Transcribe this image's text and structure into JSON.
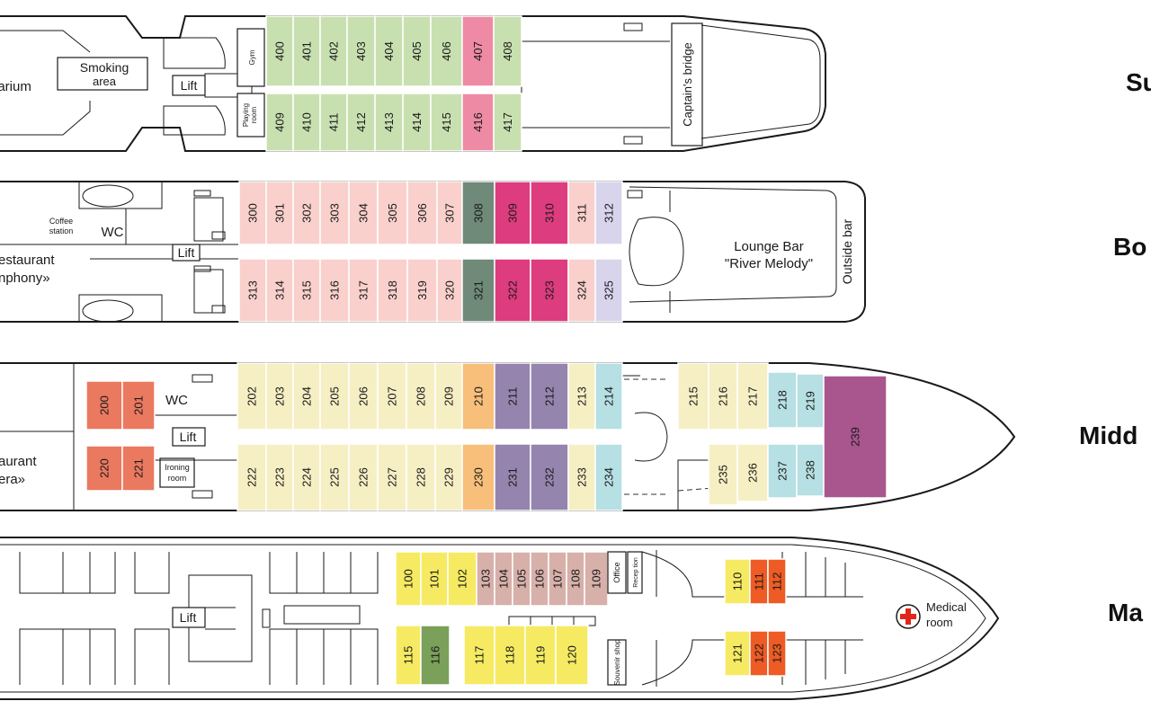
{
  "colors": {
    "green": "#c8e0b0",
    "pink": "#ef8aa4",
    "lightpink": "#f9d0cc",
    "darkgreen": "#6f8a78",
    "magenta": "#dd3c7e",
    "lavender": "#d7d4ec",
    "cream": "#f6efc4",
    "orange": "#f7bf7a",
    "purple": "#9584ae",
    "teal": "#b6e0e3",
    "plum": "#a9568f",
    "red": "#ea7960",
    "yellow": "#f6ea63",
    "mauve": "#d7b0aa",
    "olive": "#7aa05a",
    "redorange": "#ee5b24"
  },
  "decks": [
    {
      "key": "sun",
      "name": "Su"
    },
    {
      "key": "boat",
      "name": "Bo"
    },
    {
      "key": "middle",
      "name": "Midd"
    },
    {
      "key": "main",
      "name": "Ma"
    }
  ],
  "labels": {
    "solarium": "larium",
    "smoking_1": "Smoking",
    "smoking_2": "area",
    "lift": "Lift",
    "gym": "Gym",
    "playing_1": "Playing",
    "playing_2": "room",
    "captains_bridge": "Captain's bridge",
    "coffee_1": "Coffee",
    "coffee_2": "station",
    "wc": "WC",
    "restaurant_sym_1": "estaurant",
    "restaurant_sym_2": "nphony»",
    "lounge_1": "Lounge Bar",
    "lounge_2": "\"River Melody\"",
    "outside_bar": "Outside bar",
    "ironing_1": "Ironing",
    "ironing_2": "room",
    "restaurant_op_1": "aurant",
    "restaurant_op_2": "era»",
    "office": "Office",
    "reception": "Recep tion",
    "souvenir": "Souvenir shop",
    "medical_1": "Medical",
    "medical_2": "room"
  },
  "cabins": {
    "sun": [
      {
        "n": "400",
        "c": "green"
      },
      {
        "n": "401",
        "c": "green"
      },
      {
        "n": "402",
        "c": "green"
      },
      {
        "n": "403",
        "c": "green"
      },
      {
        "n": "404",
        "c": "green"
      },
      {
        "n": "405",
        "c": "green"
      },
      {
        "n": "406",
        "c": "green"
      },
      {
        "n": "407",
        "c": "pink"
      },
      {
        "n": "408",
        "c": "green"
      },
      {
        "n": "409",
        "c": "green"
      },
      {
        "n": "410",
        "c": "green"
      },
      {
        "n": "411",
        "c": "green"
      },
      {
        "n": "412",
        "c": "green"
      },
      {
        "n": "413",
        "c": "green"
      },
      {
        "n": "414",
        "c": "green"
      },
      {
        "n": "415",
        "c": "green"
      },
      {
        "n": "416",
        "c": "pink"
      },
      {
        "n": "417",
        "c": "green"
      }
    ],
    "boat": [
      {
        "n": "300",
        "c": "lightpink"
      },
      {
        "n": "301",
        "c": "lightpink"
      },
      {
        "n": "302",
        "c": "lightpink"
      },
      {
        "n": "303",
        "c": "lightpink"
      },
      {
        "n": "304",
        "c": "lightpink"
      },
      {
        "n": "305",
        "c": "lightpink"
      },
      {
        "n": "306",
        "c": "lightpink"
      },
      {
        "n": "307",
        "c": "lightpink"
      },
      {
        "n": "308",
        "c": "darkgreen"
      },
      {
        "n": "309",
        "c": "magenta"
      },
      {
        "n": "310",
        "c": "magenta"
      },
      {
        "n": "311",
        "c": "lightpink"
      },
      {
        "n": "312",
        "c": "lavender"
      },
      {
        "n": "313",
        "c": "lightpink"
      },
      {
        "n": "314",
        "c": "lightpink"
      },
      {
        "n": "315",
        "c": "lightpink"
      },
      {
        "n": "316",
        "c": "lightpink"
      },
      {
        "n": "317",
        "c": "lightpink"
      },
      {
        "n": "318",
        "c": "lightpink"
      },
      {
        "n": "319",
        "c": "lightpink"
      },
      {
        "n": "320",
        "c": "lightpink"
      },
      {
        "n": "321",
        "c": "darkgreen"
      },
      {
        "n": "322",
        "c": "magenta"
      },
      {
        "n": "323",
        "c": "magenta"
      },
      {
        "n": "324",
        "c": "lightpink"
      },
      {
        "n": "325",
        "c": "lavender"
      }
    ],
    "middle": [
      {
        "n": "200",
        "c": "red"
      },
      {
        "n": "201",
        "c": "red"
      },
      {
        "n": "202",
        "c": "cream"
      },
      {
        "n": "203",
        "c": "cream"
      },
      {
        "n": "204",
        "c": "cream"
      },
      {
        "n": "205",
        "c": "cream"
      },
      {
        "n": "206",
        "c": "cream"
      },
      {
        "n": "207",
        "c": "cream"
      },
      {
        "n": "208",
        "c": "cream"
      },
      {
        "n": "209",
        "c": "cream"
      },
      {
        "n": "210",
        "c": "orange"
      },
      {
        "n": "211",
        "c": "purple"
      },
      {
        "n": "212",
        "c": "purple"
      },
      {
        "n": "213",
        "c": "cream"
      },
      {
        "n": "214",
        "c": "teal"
      },
      {
        "n": "215",
        "c": "cream"
      },
      {
        "n": "216",
        "c": "cream"
      },
      {
        "n": "217",
        "c": "cream"
      },
      {
        "n": "218",
        "c": "teal"
      },
      {
        "n": "219",
        "c": "teal"
      },
      {
        "n": "220",
        "c": "red"
      },
      {
        "n": "221",
        "c": "red"
      },
      {
        "n": "222",
        "c": "cream"
      },
      {
        "n": "223",
        "c": "cream"
      },
      {
        "n": "224",
        "c": "cream"
      },
      {
        "n": "225",
        "c": "cream"
      },
      {
        "n": "226",
        "c": "cream"
      },
      {
        "n": "227",
        "c": "cream"
      },
      {
        "n": "228",
        "c": "cream"
      },
      {
        "n": "229",
        "c": "cream"
      },
      {
        "n": "230",
        "c": "orange"
      },
      {
        "n": "231",
        "c": "purple"
      },
      {
        "n": "232",
        "c": "purple"
      },
      {
        "n": "233",
        "c": "cream"
      },
      {
        "n": "234",
        "c": "teal"
      },
      {
        "n": "235",
        "c": "cream"
      },
      {
        "n": "236",
        "c": "cream"
      },
      {
        "n": "237",
        "c": "teal"
      },
      {
        "n": "238",
        "c": "teal"
      },
      {
        "n": "239",
        "c": "plum"
      }
    ],
    "main": [
      {
        "n": "100",
        "c": "yellow"
      },
      {
        "n": "101",
        "c": "yellow"
      },
      {
        "n": "102",
        "c": "yellow"
      },
      {
        "n": "103",
        "c": "mauve"
      },
      {
        "n": "104",
        "c": "mauve"
      },
      {
        "n": "105",
        "c": "mauve"
      },
      {
        "n": "106",
        "c": "mauve"
      },
      {
        "n": "107",
        "c": "mauve"
      },
      {
        "n": "108",
        "c": "mauve"
      },
      {
        "n": "109",
        "c": "mauve"
      },
      {
        "n": "110",
        "c": "yellow"
      },
      {
        "n": "111",
        "c": "redorange"
      },
      {
        "n": "112",
        "c": "redorange"
      },
      {
        "n": "115",
        "c": "yellow"
      },
      {
        "n": "116",
        "c": "olive"
      },
      {
        "n": "117",
        "c": "yellow"
      },
      {
        "n": "118",
        "c": "yellow"
      },
      {
        "n": "119",
        "c": "yellow"
      },
      {
        "n": "120",
        "c": "yellow"
      },
      {
        "n": "121",
        "c": "yellow"
      },
      {
        "n": "122",
        "c": "redorange"
      },
      {
        "n": "123",
        "c": "redorange"
      }
    ]
  }
}
